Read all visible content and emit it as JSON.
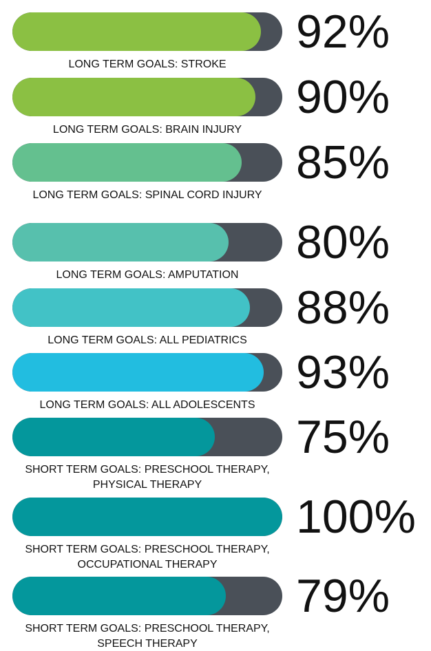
{
  "chart_data": {
    "type": "bar",
    "orientation": "horizontal",
    "categories": [
      "LONG TERM GOALS: STROKE",
      "LONG TERM GOALS: BRAIN INJURY",
      "LONG TERM GOALS: SPINAL CORD INJURY",
      "LONG TERM GOALS: AMPUTATION",
      "LONG TERM GOALS: ALL PEDIATRICS",
      "LONG TERM GOALS: ALL ADOLESCENTS",
      "SHORT TERM GOALS: PRESCHOOL THERAPY, PHYSICAL THERAPY",
      "SHORT TERM GOALS: PRESCHOOL THERAPY, OCCUPATIONAL THERAPY",
      "SHORT TERM GOALS: PRESCHOOL THERAPY, SPEECH THERAPY"
    ],
    "values": [
      92,
      90,
      85,
      80,
      88,
      93,
      75,
      100,
      79
    ],
    "value_labels": [
      "92%",
      "90%",
      "85%",
      "80%",
      "88%",
      "93%",
      "75%",
      "100%",
      "79%"
    ],
    "colors": [
      "#8bc043",
      "#8bc043",
      "#64c08f",
      "#57c0ad",
      "#42c2c6",
      "#22bde0",
      "#04979c",
      "#04979c",
      "#04979c"
    ],
    "track_color": "#4a5058",
    "xlim": [
      0,
      100
    ]
  }
}
